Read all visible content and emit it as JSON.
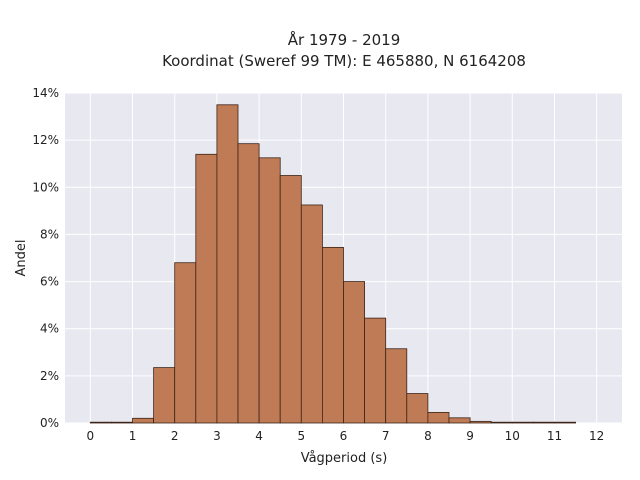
{
  "chart_data": {
    "type": "bar",
    "title": [
      "År 1979 - 2019",
      "Koordinat (Sweref 99 TM): E 465880, N 6164208"
    ],
    "xlabel": "Vågperiod (s)",
    "ylabel": "Andel",
    "xlim": [
      -0.6,
      12.6
    ],
    "ylim": [
      0,
      14
    ],
    "x_ticks": [
      0,
      1,
      2,
      3,
      4,
      5,
      6,
      7,
      8,
      9,
      10,
      11,
      12
    ],
    "y_ticks": [
      0,
      2,
      4,
      6,
      8,
      10,
      12,
      14
    ],
    "y_tick_labels": [
      "0%",
      "2%",
      "4%",
      "6%",
      "8%",
      "10%",
      "12%",
      "14%"
    ],
    "bin_width": 0.5,
    "bins": [
      {
        "start": 0.0,
        "value": 0.02
      },
      {
        "start": 0.5,
        "value": 0.0
      },
      {
        "start": 1.0,
        "value": 0.2
      },
      {
        "start": 1.5,
        "value": 2.35
      },
      {
        "start": 2.0,
        "value": 6.8
      },
      {
        "start": 2.5,
        "value": 11.4
      },
      {
        "start": 3.0,
        "value": 13.5
      },
      {
        "start": 3.5,
        "value": 11.85
      },
      {
        "start": 4.0,
        "value": 11.25
      },
      {
        "start": 4.5,
        "value": 10.5
      },
      {
        "start": 5.0,
        "value": 9.25
      },
      {
        "start": 5.5,
        "value": 7.45
      },
      {
        "start": 6.0,
        "value": 6.0
      },
      {
        "start": 6.5,
        "value": 4.45
      },
      {
        "start": 7.0,
        "value": 3.15
      },
      {
        "start": 7.5,
        "value": 1.25
      },
      {
        "start": 8.0,
        "value": 0.45
      },
      {
        "start": 8.5,
        "value": 0.22
      },
      {
        "start": 9.0,
        "value": 0.07
      },
      {
        "start": 9.5,
        "value": 0.03
      },
      {
        "start": 10.0,
        "value": 0.02
      },
      {
        "start": 10.5,
        "value": 0.02
      },
      {
        "start": 11.0,
        "value": 0.01
      }
    ],
    "grid": true,
    "colors": {
      "bar_fill": "#bf7b55",
      "bar_edge": "#3d2418",
      "plot_bg": "#e8e8f0",
      "grid": "#ffffff"
    }
  }
}
